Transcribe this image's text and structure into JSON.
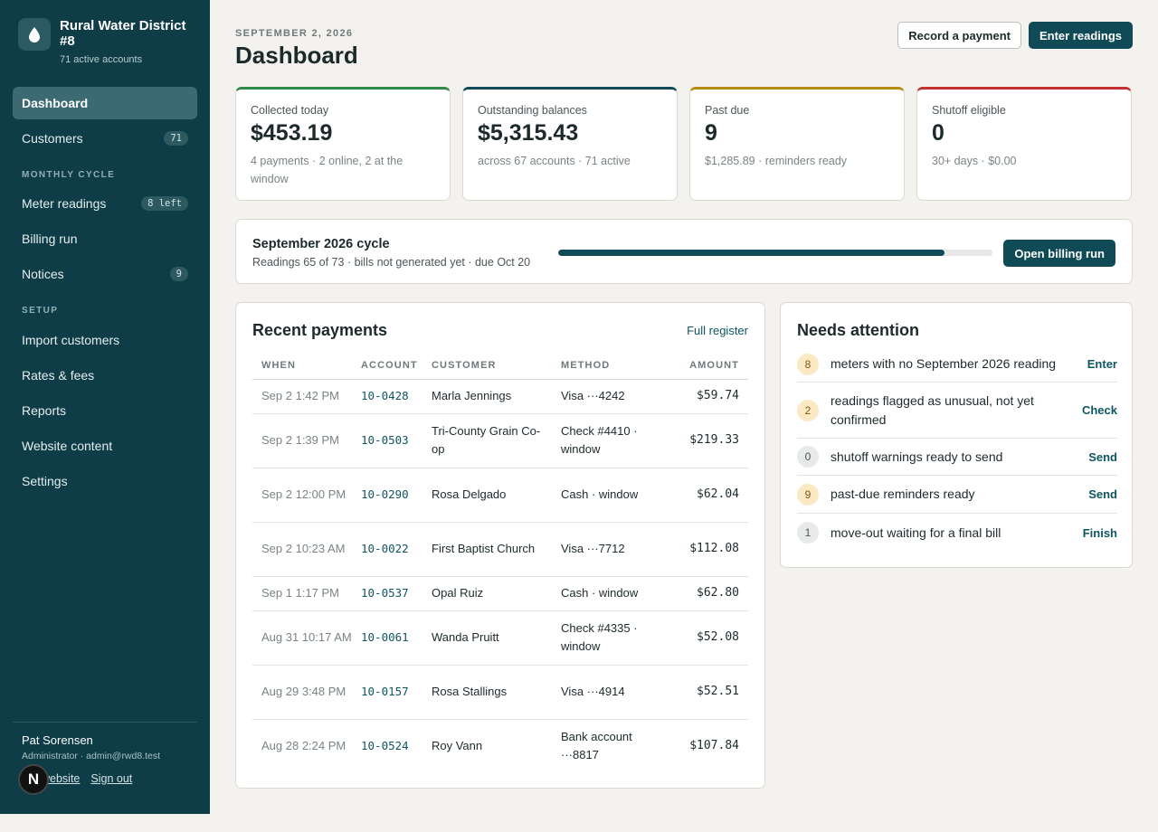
{
  "sidebar": {
    "brand_name": "Rural Water District #8",
    "brand_sub": "71 active accounts",
    "items": [
      {
        "label": "Dashboard"
      },
      {
        "label": "Customers",
        "badge": "71"
      },
      {
        "label": "Meter readings",
        "badge": "8 left"
      },
      {
        "label": "Billing run"
      },
      {
        "label": "Notices",
        "badge": "9"
      },
      {
        "label": "Import customers"
      },
      {
        "label": "Rates & fees"
      },
      {
        "label": "Reports"
      },
      {
        "label": "Website content"
      },
      {
        "label": "Settings"
      }
    ],
    "sections": {
      "monthly": "MONTHLY CYCLE",
      "setup": "SETUP"
    },
    "user": {
      "name": "Pat Sorensen",
      "role": "Administrator · admin@rwd8.test"
    },
    "links": {
      "website": "website",
      "signout": "Sign out"
    },
    "n_badge": "N"
  },
  "header": {
    "date": "SEPTEMBER 2, 2026",
    "title": "Dashboard",
    "record_payment": "Record a payment",
    "enter_readings": "Enter readings"
  },
  "stats": [
    {
      "label": "Collected today",
      "value": "$453.19",
      "note": "4 payments · 2 online, 2 at the window",
      "accent": "#2f8a4a"
    },
    {
      "label": "Outstanding balances",
      "value": "$5,315.43",
      "note": "across 67 accounts · 71 active",
      "accent": "#0f4a56"
    },
    {
      "label": "Past due",
      "value": "9",
      "note": "$1,285.89 · reminders ready",
      "accent": "#b88a12"
    },
    {
      "label": "Shutoff eligible",
      "value": "0",
      "note": "30+ days · $0.00",
      "accent": "#c2302f"
    }
  ],
  "cycle": {
    "title": "September 2026 cycle",
    "sub": "Readings 65 of 73 · bills not generated yet · due Oct 20",
    "progress": 0.89,
    "button": "Open billing run"
  },
  "payments": {
    "title": "Recent payments",
    "link": "Full register",
    "columns": [
      "WHEN",
      "ACCOUNT",
      "CUSTOMER",
      "METHOD",
      "AMOUNT"
    ],
    "rows": [
      {
        "when": "Sep 2 1:42 PM",
        "account": "10-0428",
        "customer": "Marla Jennings",
        "method": "Visa ···4242",
        "amount": "$59.74"
      },
      {
        "when": "Sep 2 1:39 PM",
        "account": "10-0503",
        "customer": "Tri-County Grain Co-op",
        "method": "Check #4410 · window",
        "amount": "$219.33"
      },
      {
        "when": "Sep 2 12:00 PM",
        "account": "10-0290",
        "customer": "Rosa Delgado",
        "method": "Cash · window",
        "amount": "$62.04"
      },
      {
        "when": "Sep 2 10:23 AM",
        "account": "10-0022",
        "customer": "First Baptist Church",
        "method": "Visa ···7712",
        "amount": "$112.08"
      },
      {
        "when": "Sep 1 1:17 PM",
        "account": "10-0537",
        "customer": "Opal Ruiz",
        "method": "Cash · window",
        "amount": "$62.80"
      },
      {
        "when": "Aug 31 10:17 AM",
        "account": "10-0061",
        "customer": "Wanda Pruitt",
        "method": "Check #4335 · window",
        "amount": "$52.08"
      },
      {
        "when": "Aug 29 3:48 PM",
        "account": "10-0157",
        "customer": "Rosa Stallings",
        "method": "Visa ···4914",
        "amount": "$52.51"
      },
      {
        "when": "Aug 28 2:24 PM",
        "account": "10-0524",
        "customer": "Roy Vann",
        "method": "Bank account ···8817",
        "amount": "$107.84"
      }
    ]
  },
  "attention": {
    "title": "Needs attention",
    "items": [
      {
        "count": "8",
        "text": "meters with no September 2026 reading",
        "action": "Enter",
        "badge_color": "#fbe9c4",
        "badge_text": "#7a5a10"
      },
      {
        "count": "2",
        "text": "readings flagged as unusual, not yet confirmed",
        "action": "Check",
        "badge_color": "#fbe9c4",
        "badge_text": "#7a5a10"
      },
      {
        "count": "0",
        "text": "shutoff warnings ready to send",
        "action": "Send",
        "badge_color": "#e8eae8",
        "badge_text": "#4c5658"
      },
      {
        "count": "9",
        "text": "past-due reminders ready",
        "action": "Send",
        "badge_color": "#fbe9c4",
        "badge_text": "#7a5a10"
      },
      {
        "count": "1",
        "text": "move-out waiting for a final bill",
        "action": "Finish",
        "badge_color": "#e8eae8",
        "badge_text": "#4c5658"
      }
    ]
  }
}
